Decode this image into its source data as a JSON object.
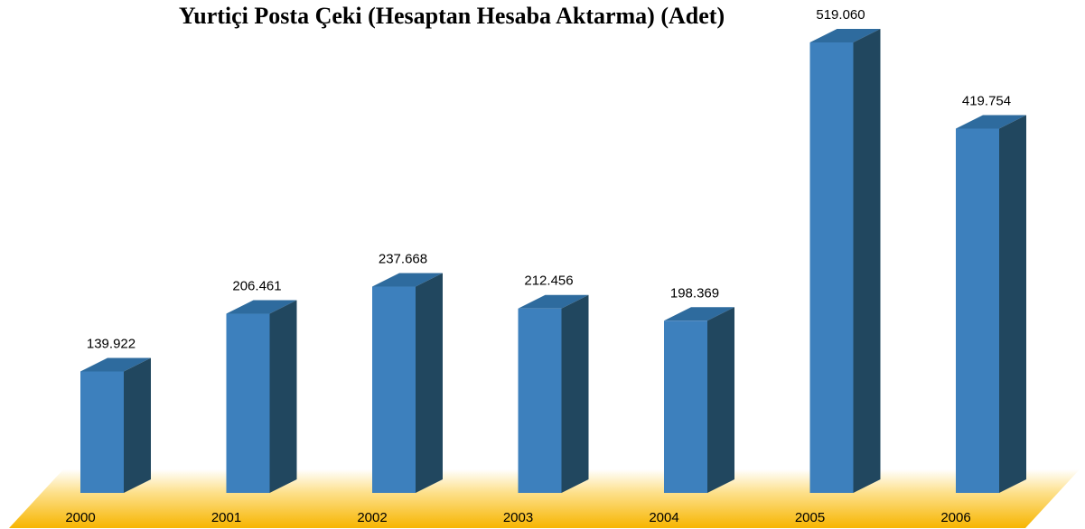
{
  "chart_data": {
    "type": "bar3d",
    "title": "Yurtiçi Posta Çeki (Hesaptan Hesaba Aktarma) (Adet)",
    "categories": [
      "2000",
      "2001",
      "2002",
      "2003",
      "2004",
      "2005",
      "2006"
    ],
    "values": [
      139922,
      206461,
      237668,
      212456,
      198369,
      519060,
      419754
    ],
    "value_labels": [
      "139.922",
      "206.461",
      "237.668",
      "212.456",
      "198.369",
      "519.060",
      "419.754"
    ],
    "color": "#3d80bd"
  }
}
